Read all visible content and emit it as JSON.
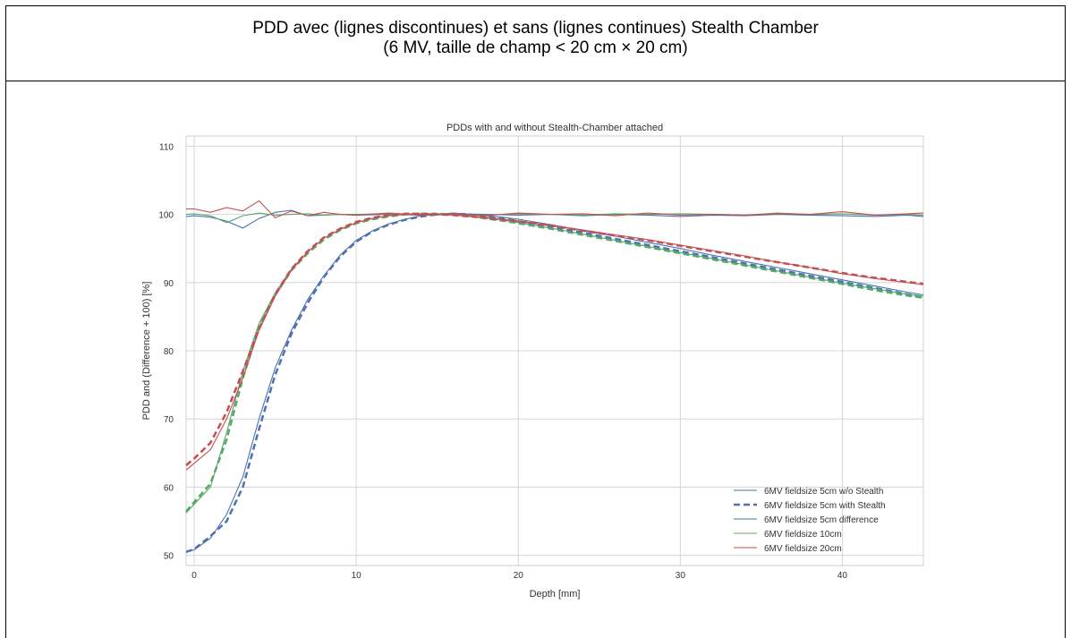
{
  "header": {
    "line1": "PDD avec (lignes discontinues) et sans (lignes continues) Stealth Chamber",
    "line2": "(6 MV, taille de champ < 20 cm × 20 cm)"
  },
  "chart_data": {
    "type": "line",
    "title": "PDDs with and without Stealth-Chamber attached",
    "xlabel": "Depth [mm]",
    "ylabel": "PDD and (Difference + 100) [%]",
    "xlim": [
      -0.5,
      45
    ],
    "ylim": [
      48.5,
      111.5
    ],
    "xticks": [
      0,
      10,
      20,
      30,
      40
    ],
    "yticks": [
      50,
      60,
      70,
      80,
      90,
      100,
      110
    ],
    "grid": true,
    "legend_position": "lower-right",
    "colors": {
      "blue": "#4c72b0",
      "green": "#55a868",
      "red": "#c44e52"
    },
    "series": [
      {
        "name": "6MV fieldsize 5cm w/o Stealth",
        "color": "#4c72b0",
        "style": "solid",
        "x": [
          -0.5,
          0,
          1,
          2,
          3,
          4,
          5,
          6,
          7,
          8,
          9,
          10,
          11,
          12,
          13,
          14,
          15,
          16,
          17,
          18,
          19,
          20,
          22,
          24,
          26,
          28,
          30,
          32,
          34,
          36,
          38,
          40,
          42,
          44,
          45
        ],
        "y": [
          50.5,
          50.8,
          52.5,
          56,
          61.5,
          70,
          77.5,
          83,
          87.5,
          91,
          94,
          96.2,
          97.6,
          98.6,
          99.3,
          99.8,
          100,
          100.2,
          100,
          99.8,
          99.6,
          99.3,
          98.5,
          97.6,
          96.8,
          95.9,
          95,
          94,
          93.1,
          92.2,
          91.3,
          90.4,
          89.5,
          88.6,
          88.2
        ]
      },
      {
        "name": "6MV fieldsize 5cm with Stealth",
        "color": "#4c72b0",
        "style": "dashed",
        "x": [
          -0.5,
          0,
          1,
          2,
          3,
          4,
          5,
          6,
          7,
          8,
          9,
          10,
          11,
          12,
          13,
          14,
          15,
          16,
          17,
          18,
          19,
          20,
          22,
          24,
          26,
          28,
          30,
          32,
          34,
          36,
          38,
          40,
          42,
          44,
          45
        ],
        "y": [
          50.5,
          50.9,
          52.8,
          55,
          60,
          68.5,
          76.5,
          82.5,
          87,
          90.8,
          93.8,
          96,
          97.5,
          98.5,
          99.2,
          99.7,
          100,
          100.1,
          100,
          99.7,
          99.4,
          99,
          98.2,
          97.3,
          96.4,
          95.5,
          94.6,
          93.7,
          92.8,
          91.9,
          91,
          90.1,
          89.2,
          88.3,
          87.9
        ]
      },
      {
        "name": "6MV fieldsize 5cm difference",
        "color": "#4c72b0",
        "style": "solid",
        "x": [
          -0.5,
          0,
          1,
          2,
          3,
          4,
          5,
          6,
          7,
          8,
          9,
          10,
          12,
          14,
          16,
          18,
          20,
          22,
          24,
          26,
          28,
          30,
          32,
          34,
          36,
          38,
          40,
          42,
          44,
          45
        ],
        "y": [
          99.7,
          99.8,
          99.6,
          99,
          98,
          99.4,
          100.3,
          100.6,
          99.8,
          99.9,
          100,
          99.9,
          100,
          99.9,
          100.1,
          100,
          99.9,
          100,
          99.8,
          100,
          99.9,
          99.7,
          99.9,
          99.8,
          100,
          99.9,
          99.8,
          99.7,
          99.9,
          99.7
        ]
      },
      {
        "name": "6MV fieldsize 10cm",
        "color": "#55a868",
        "style": "solid",
        "x": [
          -0.5,
          0,
          1,
          2,
          3,
          4,
          5,
          6,
          7,
          8,
          9,
          10,
          11,
          12,
          13,
          14,
          15,
          16,
          17,
          18,
          19,
          20,
          22,
          24,
          26,
          28,
          30,
          32,
          34,
          36,
          38,
          40,
          42,
          44,
          45
        ],
        "y": [
          56.2,
          57.5,
          60,
          68,
          77,
          84,
          88.5,
          92,
          94.5,
          96.5,
          97.8,
          98.8,
          99.4,
          99.8,
          100,
          100.1,
          100.1,
          100,
          99.8,
          99.5,
          99.2,
          98.8,
          98,
          97.1,
          96.2,
          95.3,
          94.4,
          93.5,
          92.6,
          91.7,
          90.8,
          89.9,
          89.1,
          88.3,
          88
        ]
      },
      {
        "name": "",
        "color": "#55a868",
        "style": "dashed",
        "x": [
          -0.5,
          0,
          1,
          2,
          3,
          4,
          5,
          6,
          7,
          8,
          9,
          10,
          11,
          12,
          13,
          14,
          15,
          16,
          17,
          18,
          19,
          20,
          22,
          24,
          26,
          28,
          30,
          32,
          34,
          36,
          38,
          40,
          42,
          44,
          45
        ],
        "y": [
          56.4,
          57.8,
          60.5,
          67,
          76,
          83.5,
          88.2,
          91.8,
          94.3,
          96.3,
          97.7,
          98.7,
          99.3,
          99.7,
          100,
          100.1,
          100.1,
          100,
          99.8,
          99.4,
          99.1,
          98.7,
          97.9,
          97,
          96.1,
          95.2,
          94.3,
          93.4,
          92.5,
          91.6,
          90.7,
          89.8,
          88.9,
          88.1,
          87.8
        ]
      },
      {
        "name": "",
        "color": "#55a868",
        "style": "solid",
        "x": [
          -0.5,
          0,
          1,
          2,
          3,
          4,
          5,
          6,
          7,
          8,
          9,
          10,
          12,
          14,
          16,
          18,
          20,
          22,
          24,
          26,
          28,
          30,
          32,
          34,
          36,
          38,
          40,
          42,
          44,
          45
        ],
        "y": [
          100,
          100.1,
          99.8,
          98.8,
          99.8,
          100.2,
          99.9,
          100,
          100.1,
          99.9,
          100,
          100,
          100.1,
          99.9,
          100,
          99.9,
          100.1,
          100,
          99.9,
          100.1,
          100,
          100.1,
          100,
          99.9,
          100.2,
          100,
          100.1,
          99.9,
          100,
          99.9
        ]
      },
      {
        "name": "6MV fieldsize 20cm",
        "color": "#c44e52",
        "style": "solid",
        "x": [
          -0.5,
          0,
          1,
          2,
          3,
          4,
          5,
          6,
          7,
          8,
          9,
          10,
          11,
          12,
          13,
          14,
          15,
          16,
          17,
          18,
          19,
          20,
          22,
          24,
          26,
          28,
          30,
          32,
          34,
          36,
          38,
          40,
          42,
          44,
          45
        ],
        "y": [
          62.5,
          63.5,
          65.5,
          70,
          76,
          83,
          88,
          91.8,
          94.5,
          96.5,
          97.8,
          98.8,
          99.4,
          99.8,
          100,
          100.1,
          100,
          99.9,
          99.7,
          99.5,
          99.3,
          99,
          98.4,
          97.7,
          97,
          96.3,
          95.5,
          94.7,
          93.9,
          93,
          92.2,
          91.3,
          90.6,
          90,
          89.7
        ]
      },
      {
        "name": "",
        "color": "#c44e52",
        "style": "dashed",
        "x": [
          -0.5,
          0,
          1,
          2,
          3,
          4,
          5,
          6,
          7,
          8,
          9,
          10,
          11,
          12,
          13,
          14,
          15,
          16,
          17,
          18,
          19,
          20,
          22,
          24,
          26,
          28,
          30,
          32,
          34,
          36,
          38,
          40,
          42,
          44,
          45
        ],
        "y": [
          63.2,
          64.2,
          66.5,
          71,
          77,
          83.2,
          88.3,
          92,
          94.6,
          96.6,
          97.9,
          98.9,
          99.5,
          99.9,
          100.1,
          100.1,
          100,
          99.9,
          99.7,
          99.5,
          99.2,
          99,
          98.4,
          97.6,
          96.9,
          96.2,
          95.4,
          94.6,
          93.8,
          93,
          92.2,
          91.4,
          90.7,
          90.1,
          89.8
        ]
      },
      {
        "name": "",
        "color": "#c44e52",
        "style": "solid",
        "x": [
          -0.5,
          0,
          1,
          2,
          3,
          4,
          5,
          6,
          7,
          8,
          9,
          10,
          12,
          14,
          16,
          18,
          20,
          22,
          24,
          26,
          28,
          30,
          32,
          34,
          36,
          38,
          40,
          42,
          44,
          45
        ],
        "y": [
          100.8,
          100.8,
          100.3,
          101,
          100.5,
          102,
          99.5,
          100.5,
          99.8,
          100.3,
          100,
          99.9,
          100.2,
          99.9,
          100.1,
          99.8,
          100.2,
          100,
          100.1,
          99.8,
          100.2,
          99.9,
          100,
          99.9,
          100.1,
          100,
          100.4,
          99.9,
          100.1,
          100.2
        ]
      }
    ]
  }
}
